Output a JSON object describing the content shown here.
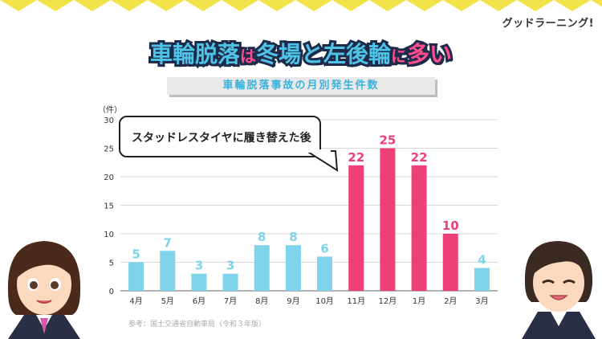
{
  "brand": "グッドラーニング!",
  "title": {
    "part1": "車輪脱落",
    "part2": "は",
    "part3": "冬場と左後輪",
    "part4": "に",
    "part5": "多い"
  },
  "subtitle": "車輪脱落事故の月別発生件数",
  "unit_label": "（件）",
  "callout": "スタッドレスタイヤに履き替えた後",
  "source": "参考：国土交通省自動車局（令和３年版）",
  "colors": {
    "normal": "#7fd3ea",
    "highlight": "#ee3f77",
    "zigzag": "#f2e34a"
  },
  "chart_data": {
    "type": "bar",
    "categories": [
      "4月",
      "5月",
      "6月",
      "7月",
      "8月",
      "9月",
      "10月",
      "11月",
      "12月",
      "1月",
      "2月",
      "3月"
    ],
    "values": [
      5,
      7,
      3,
      3,
      8,
      8,
      6,
      22,
      25,
      22,
      10,
      4
    ],
    "highlight": [
      false,
      false,
      false,
      false,
      false,
      false,
      false,
      true,
      true,
      true,
      true,
      false
    ],
    "ylim": [
      0,
      30
    ],
    "yticks": [
      0,
      5,
      10,
      15,
      20,
      25,
      30
    ],
    "grid": true,
    "xlabel": "",
    "ylabel": "（件）"
  }
}
